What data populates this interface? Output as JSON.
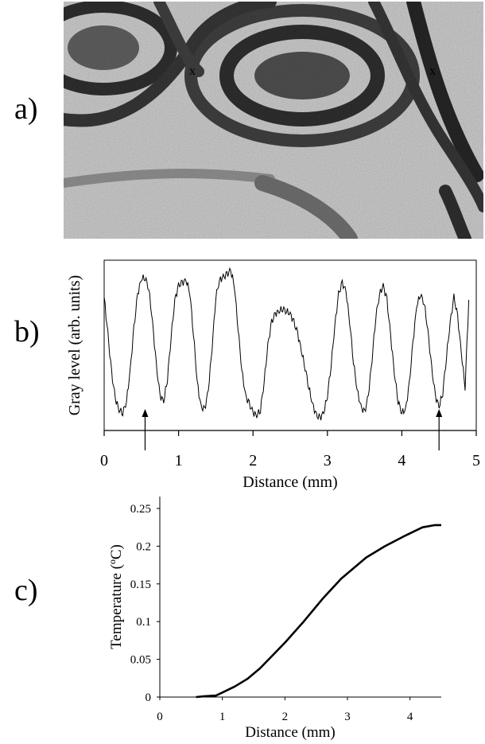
{
  "panels": {
    "a": "a)",
    "b": "b)",
    "c": "c)"
  },
  "image_a": {
    "markers": [
      "x",
      "x"
    ]
  },
  "chart_data": [
    {
      "type": "line",
      "panel": "b",
      "title": "",
      "xlabel": "Distance (mm)",
      "ylabel": "Gray level (arb. units)",
      "xlim": [
        0,
        5
      ],
      "xticks": [
        "0",
        "1",
        "2",
        "3",
        "4",
        "5"
      ],
      "grid": false,
      "arrows_at_x": [
        0.55,
        4.5
      ],
      "series": [
        {
          "x": [
            0,
            0.05,
            0.1,
            0.15,
            0.2,
            0.25,
            0.3,
            0.35,
            0.4,
            0.45,
            0.5,
            0.55,
            0.6,
            0.65,
            0.7,
            0.75,
            0.8,
            0.85,
            0.9,
            0.95,
            1.0,
            1.05,
            1.1,
            1.15,
            1.2,
            1.25,
            1.3,
            1.35,
            1.4,
            1.45,
            1.5,
            1.55,
            1.6,
            1.65,
            1.7,
            1.75,
            1.8,
            1.85,
            1.9,
            1.95,
            2.0,
            2.05,
            2.1,
            2.15,
            2.2,
            2.25,
            2.3,
            2.35,
            2.4,
            2.45,
            2.5,
            2.55,
            2.6,
            2.65,
            2.7,
            2.75,
            2.8,
            2.85,
            2.9,
            2.95,
            3.0,
            3.05,
            3.1,
            3.15,
            3.2,
            3.25,
            3.3,
            3.35,
            3.4,
            3.45,
            3.5,
            3.55,
            3.6,
            3.65,
            3.7,
            3.75,
            3.8,
            3.85,
            3.9,
            3.95,
            4.0,
            4.05,
            4.1,
            4.15,
            4.2,
            4.25,
            4.3,
            4.35,
            4.4,
            4.45,
            4.5,
            4.55,
            4.6,
            4.65,
            4.7,
            4.75,
            4.8,
            4.85,
            4.9
          ],
          "values": [
            0.84,
            0.58,
            0.3,
            0.12,
            0.04,
            0.02,
            0.1,
            0.32,
            0.62,
            0.86,
            0.97,
            0.98,
            0.9,
            0.66,
            0.36,
            0.14,
            0.1,
            0.26,
            0.56,
            0.82,
            0.92,
            0.94,
            0.96,
            0.88,
            0.58,
            0.24,
            0.06,
            0.04,
            0.18,
            0.48,
            0.84,
            0.96,
            0.98,
            1.0,
            1.03,
            0.92,
            0.62,
            0.32,
            0.14,
            0.08,
            0.02,
            0.0,
            0.04,
            0.24,
            0.5,
            0.66,
            0.72,
            0.74,
            0.76,
            0.74,
            0.72,
            0.66,
            0.58,
            0.46,
            0.34,
            0.2,
            0.08,
            0.0,
            -0.02,
            0.02,
            0.14,
            0.36,
            0.64,
            0.86,
            0.94,
            0.88,
            0.66,
            0.38,
            0.18,
            0.06,
            0.02,
            0.14,
            0.4,
            0.7,
            0.86,
            0.92,
            0.82,
            0.56,
            0.3,
            0.1,
            0.02,
            0.04,
            0.22,
            0.52,
            0.78,
            0.86,
            0.8,
            0.6,
            0.34,
            0.14,
            0.06,
            0.16,
            0.42,
            0.66,
            0.84,
            0.7,
            0.44,
            0.2,
            0.82
          ]
        }
      ]
    },
    {
      "type": "line",
      "panel": "c",
      "title": "",
      "xlabel": "Distance (mm)",
      "ylabel": "Temperature (ºC)",
      "xlim": [
        0,
        4.5
      ],
      "ylim": [
        0,
        0.25
      ],
      "xticks": [
        "0",
        "1",
        "2",
        "3",
        "4"
      ],
      "yticks": [
        "0",
        "0.05",
        "0.1",
        "0.15",
        "0.2",
        "0.25"
      ],
      "grid": false,
      "series": [
        {
          "x": [
            0.58,
            0.7,
            0.9,
            1.0,
            1.2,
            1.4,
            1.6,
            1.8,
            2.0,
            2.3,
            2.6,
            2.9,
            3.3,
            3.6,
            3.9,
            4.2,
            4.4,
            4.5
          ],
          "values": [
            0.0,
            0.001,
            0.002,
            0.006,
            0.014,
            0.024,
            0.038,
            0.055,
            0.072,
            0.1,
            0.13,
            0.157,
            0.185,
            0.2,
            0.213,
            0.225,
            0.228,
            0.228
          ]
        }
      ]
    }
  ]
}
